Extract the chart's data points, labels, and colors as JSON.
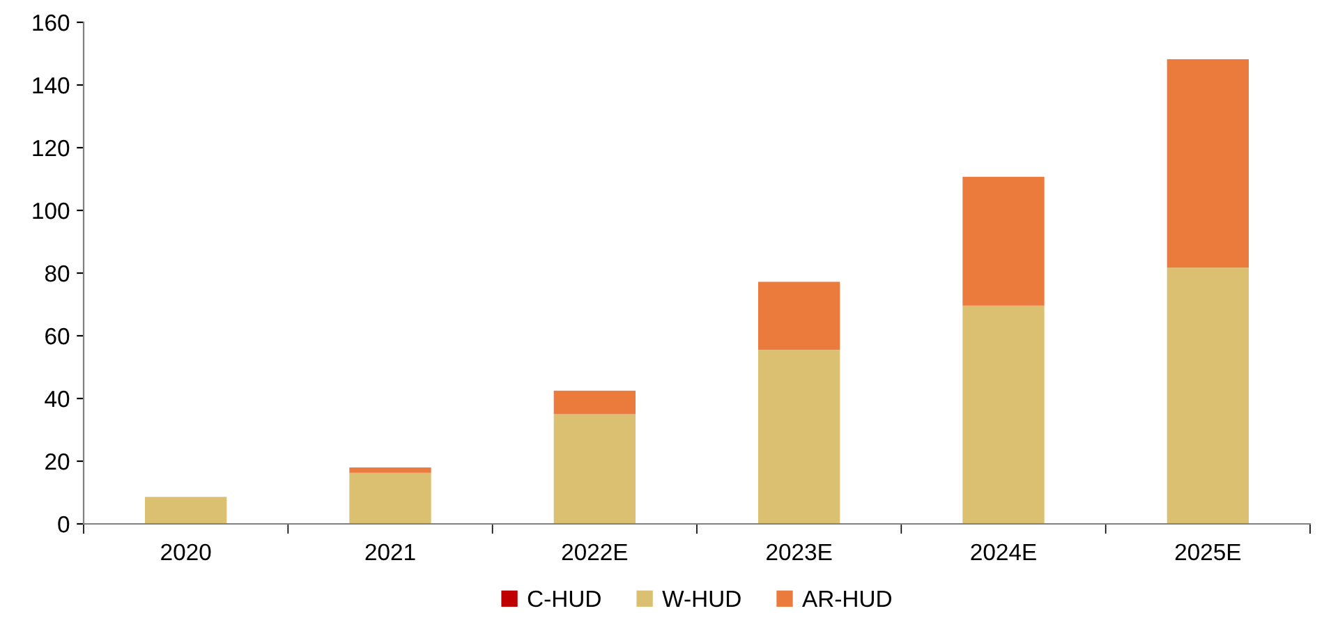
{
  "chart_data": {
    "type": "bar",
    "stacked": true,
    "categories": [
      "2020",
      "2021",
      "2022E",
      "2023E",
      "2024E",
      "2025E"
    ],
    "series": [
      {
        "name": "C-HUD",
        "color": "#c00000",
        "values": [
          0,
          0,
          0,
          0,
          0,
          0
        ]
      },
      {
        "name": "W-HUD",
        "color": "#dbc072",
        "values": [
          8.6,
          16.3,
          35,
          55.5,
          69.6,
          81.7
        ]
      },
      {
        "name": "AR-HUD",
        "color": "#eb7b3d",
        "values": [
          0,
          1.7,
          7.5,
          21.7,
          41.1,
          66.5
        ]
      }
    ],
    "ylim": [
      0,
      160
    ],
    "yticks": [
      0,
      20,
      40,
      60,
      80,
      100,
      120,
      140,
      160
    ],
    "grid": false,
    "legend": "bottom"
  }
}
